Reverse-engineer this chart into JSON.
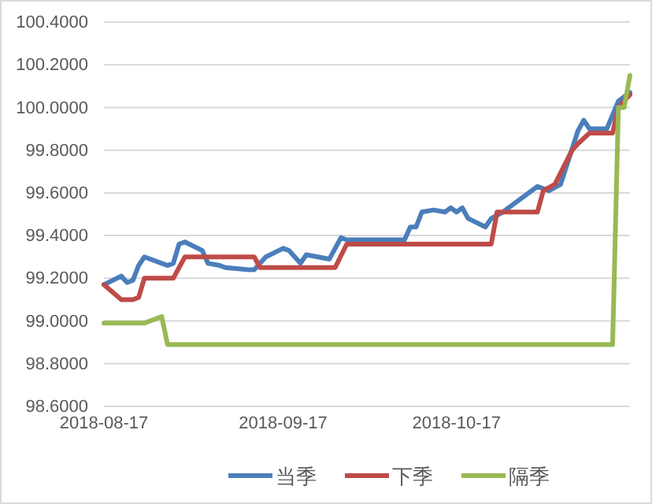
{
  "chart_data": {
    "type": "line",
    "x": [
      "2018-08-17",
      "2018-08-20",
      "2018-08-21",
      "2018-08-22",
      "2018-08-23",
      "2018-08-24",
      "2018-08-28",
      "2018-08-29",
      "2018-08-30",
      "2018-08-31",
      "2018-09-03",
      "2018-09-04",
      "2018-09-06",
      "2018-09-07",
      "2018-09-11",
      "2018-09-12",
      "2018-09-14",
      "2018-09-17",
      "2018-09-18",
      "2018-09-20",
      "2018-09-21",
      "2018-09-25",
      "2018-09-27",
      "2018-09-28",
      "2018-10-08",
      "2018-10-09",
      "2018-10-10",
      "2018-10-11",
      "2018-10-13",
      "2018-10-15",
      "2018-10-16",
      "2018-10-17",
      "2018-10-18",
      "2018-10-19",
      "2018-10-22",
      "2018-10-23",
      "2018-10-25",
      "2018-10-26",
      "2018-10-29",
      "2018-10-31",
      "2018-11-02",
      "2018-11-04",
      "2018-11-07",
      "2018-11-08",
      "2018-11-09",
      "2018-11-12",
      "2018-11-14",
      "2018-11-15",
      "2018-11-16"
    ],
    "series": [
      {
        "name": "当季",
        "color": "#4a7ebb",
        "values": [
          99.17,
          99.21,
          99.18,
          99.19,
          99.26,
          99.3,
          99.26,
          99.27,
          99.36,
          99.37,
          99.33,
          99.27,
          99.26,
          99.25,
          99.24,
          99.24,
          99.3,
          99.34,
          99.33,
          99.27,
          99.31,
          99.29,
          99.39,
          99.38,
          99.38,
          99.44,
          99.44,
          99.51,
          99.52,
          99.51,
          99.53,
          99.51,
          99.53,
          99.48,
          99.44,
          99.48,
          99.51,
          99.53,
          99.59,
          99.63,
          99.61,
          99.64,
          99.89,
          99.94,
          99.9,
          99.9,
          100.03,
          100.05,
          100.07
        ]
      },
      {
        "name": "下季",
        "color": "#be4b48",
        "x": [
          "2018-08-17",
          "2018-08-20",
          "2018-08-22",
          "2018-08-23",
          "2018-08-24",
          "2018-08-29",
          "2018-08-31",
          "2018-09-12",
          "2018-09-13",
          "2018-09-26",
          "2018-09-28",
          "2018-10-23",
          "2018-10-24",
          "2018-10-31",
          "2018-11-01",
          "2018-11-03",
          "2018-11-06",
          "2018-11-07",
          "2018-11-09",
          "2018-11-13",
          "2018-11-14",
          "2018-11-16"
        ],
        "values": [
          99.17,
          99.1,
          99.1,
          99.11,
          99.2,
          99.2,
          99.3,
          99.3,
          99.25,
          99.25,
          99.36,
          99.36,
          99.51,
          99.51,
          99.61,
          99.64,
          99.8,
          99.83,
          99.88,
          99.88,
          100.0,
          100.06
        ]
      },
      {
        "name": "隔季",
        "color": "#98b954",
        "x": [
          "2018-08-17",
          "2018-08-24",
          "2018-08-27",
          "2018-08-28",
          "2018-11-13",
          "2018-11-14",
          "2018-11-15",
          "2018-11-16"
        ],
        "values": [
          98.99,
          98.99,
          99.02,
          98.89,
          98.89,
          100.0,
          100.0,
          100.15
        ]
      }
    ],
    "xlim": [
      "2018-08-17",
      "2018-11-16"
    ],
    "xticks": [
      "2018-08-17",
      "2018-09-17",
      "2018-10-17"
    ],
    "ylim": [
      98.6,
      100.4
    ],
    "yticks": [
      {
        "value": 98.6,
        "label": "98.6000"
      },
      {
        "value": 98.8,
        "label": "98.8000"
      },
      {
        "value": 99.0,
        "label": "99.0000"
      },
      {
        "value": 99.2,
        "label": "99.2000"
      },
      {
        "value": 99.4,
        "label": "99.4000"
      },
      {
        "value": 99.6,
        "label": "99.6000"
      },
      {
        "value": 99.8,
        "label": "99.8000"
      },
      {
        "value": 100.0,
        "label": "100.0000"
      },
      {
        "value": 100.2,
        "label": "100.2000"
      },
      {
        "value": 100.4,
        "label": "100.4000"
      }
    ],
    "grid": "y",
    "legend": "bottom",
    "line_style": "solid"
  }
}
